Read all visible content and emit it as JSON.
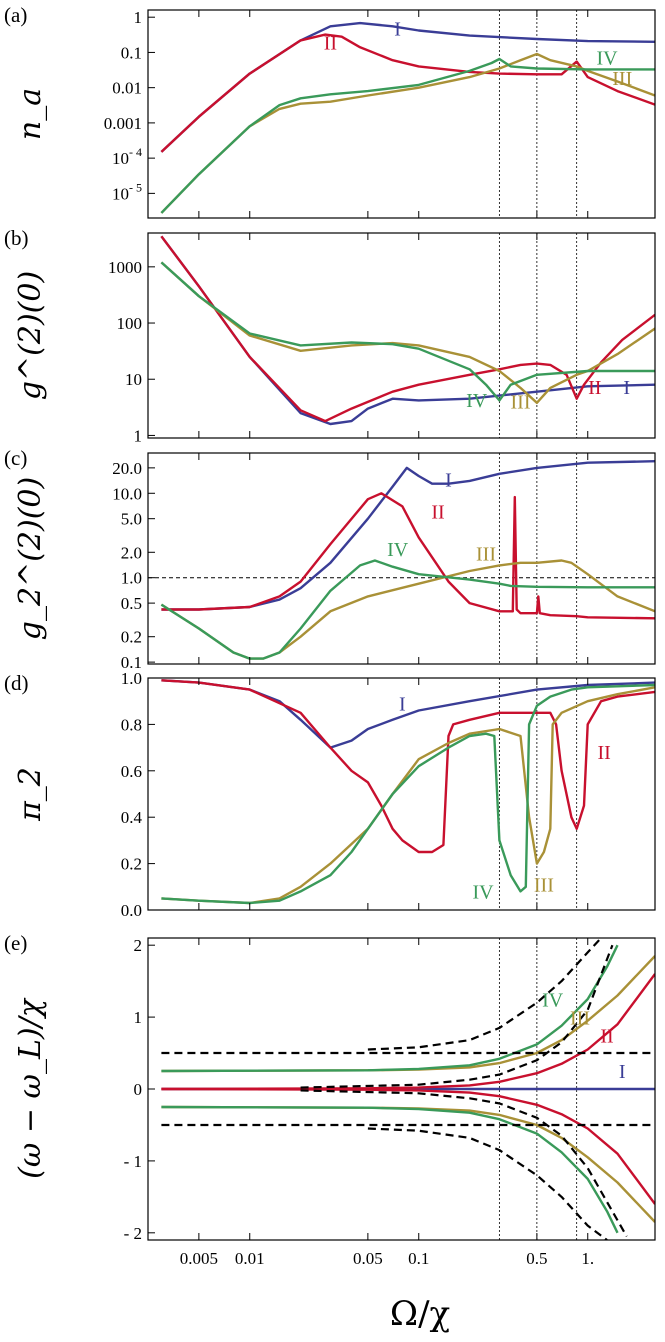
{
  "colors": {
    "I": "#3a3d96",
    "II": "#c8102e",
    "III": "#a99137",
    "IV": "#3a9a5a",
    "ref": "#000000"
  },
  "x_axis": {
    "label": "Ω/χ",
    "scale": "log",
    "range": [
      0.0025,
      2.5
    ],
    "ticks": [
      0.005,
      0.01,
      0.05,
      0.1,
      0.5,
      1.0
    ],
    "tick_labels": [
      "0.005",
      "0.01",
      "0.05",
      "0.1",
      "0.5",
      "1."
    ]
  },
  "reference_lines_x": [
    0.3,
    0.5,
    0.86
  ],
  "series_labels": [
    "I",
    "II",
    "III",
    "IV"
  ],
  "chart_data": [
    {
      "panel": "(a)",
      "type": "line",
      "ylabel": "n_a",
      "yscale": "log",
      "ylim": [
        2e-06,
        1.6
      ],
      "yticks": [
        1e-05,
        0.0001,
        0.001,
        0.01,
        0.1,
        1
      ],
      "ytick_labels": [
        "10^-5",
        "10^-4",
        "0.001",
        "0.01",
        "0.1",
        "1"
      ],
      "series": [
        {
          "name": "I",
          "x": [
            0.003,
            0.005,
            0.01,
            0.02,
            0.03,
            0.045,
            0.07,
            0.1,
            0.2,
            0.5,
            1.0,
            2.5
          ],
          "y": [
            0.00015,
            0.0015,
            0.025,
            0.22,
            0.55,
            0.68,
            0.55,
            0.42,
            0.3,
            0.24,
            0.21,
            0.2
          ]
        },
        {
          "name": "II",
          "x": [
            0.003,
            0.005,
            0.01,
            0.02,
            0.028,
            0.035,
            0.045,
            0.07,
            0.1,
            0.2,
            0.3,
            0.5,
            0.7,
            0.86,
            1.0,
            1.5,
            2.5
          ],
          "y": [
            0.00015,
            0.0015,
            0.025,
            0.22,
            0.32,
            0.28,
            0.14,
            0.06,
            0.04,
            0.028,
            0.025,
            0.024,
            0.024,
            0.055,
            0.02,
            0.008,
            0.0033
          ]
        },
        {
          "name": "III",
          "x": [
            0.003,
            0.005,
            0.01,
            0.015,
            0.02,
            0.03,
            0.05,
            0.1,
            0.2,
            0.3,
            0.4,
            0.5,
            0.6,
            0.86,
            1.0,
            1.5,
            2.5
          ],
          "y": [
            2.8e-06,
            3.5e-05,
            0.0008,
            0.0025,
            0.0035,
            0.004,
            0.006,
            0.01,
            0.02,
            0.035,
            0.06,
            0.09,
            0.06,
            0.04,
            0.03,
            0.015,
            0.006
          ]
        },
        {
          "name": "IV",
          "x": [
            0.003,
            0.005,
            0.01,
            0.015,
            0.02,
            0.03,
            0.05,
            0.1,
            0.2,
            0.27,
            0.3,
            0.35,
            0.5,
            1.0,
            2.5
          ],
          "y": [
            2.8e-06,
            3.5e-05,
            0.0008,
            0.0032,
            0.005,
            0.0065,
            0.008,
            0.012,
            0.03,
            0.05,
            0.065,
            0.04,
            0.035,
            0.033,
            0.033
          ]
        }
      ]
    },
    {
      "panel": "(b)",
      "type": "line",
      "ylabel": "g^(2)(0)",
      "yscale": "log",
      "ylim": [
        0.9,
        4000
      ],
      "yticks": [
        1,
        10,
        100,
        1000
      ],
      "ytick_labels": [
        "1",
        "10",
        "100",
        "1000"
      ],
      "series": [
        {
          "name": "I",
          "x": [
            0.003,
            0.005,
            0.01,
            0.02,
            0.03,
            0.04,
            0.05,
            0.07,
            0.1,
            0.2,
            0.5,
            1.0,
            2.5
          ],
          "y": [
            3500,
            450,
            25,
            2.5,
            1.6,
            1.8,
            3.0,
            4.5,
            4.2,
            4.5,
            6.0,
            7.5,
            8.0
          ]
        },
        {
          "name": "II",
          "x": [
            0.003,
            0.005,
            0.01,
            0.02,
            0.028,
            0.04,
            0.07,
            0.1,
            0.2,
            0.3,
            0.4,
            0.5,
            0.6,
            0.75,
            0.86,
            0.95,
            1.2,
            1.6,
            2.5
          ],
          "y": [
            3500,
            450,
            25,
            2.8,
            1.8,
            3.0,
            6.0,
            8.0,
            12.0,
            15.0,
            18.0,
            19.0,
            18.0,
            12.0,
            4.5,
            8.0,
            20.0,
            50.0,
            140.0
          ]
        },
        {
          "name": "III",
          "x": [
            0.003,
            0.005,
            0.01,
            0.02,
            0.04,
            0.07,
            0.1,
            0.2,
            0.3,
            0.4,
            0.5,
            0.6,
            0.86,
            1.0,
            1.5,
            2.5
          ],
          "y": [
            1200,
            300,
            60,
            32,
            40,
            44,
            40,
            25,
            14,
            7.0,
            3.8,
            7.0,
            12.0,
            14.0,
            28.0,
            80.0
          ]
        },
        {
          "name": "IV",
          "x": [
            0.003,
            0.005,
            0.01,
            0.02,
            0.04,
            0.07,
            0.1,
            0.2,
            0.25,
            0.3,
            0.35,
            0.5,
            1.0,
            2.5
          ],
          "y": [
            1200,
            300,
            65,
            40,
            45,
            42,
            35,
            15,
            8.0,
            4.2,
            8.0,
            12.0,
            14.0,
            14.0
          ]
        }
      ]
    },
    {
      "panel": "(c)",
      "type": "line",
      "ylabel": "g_2^(2)(0)",
      "yscale": "log",
      "ylim": [
        0.095,
        30
      ],
      "yticks": [
        0.1,
        0.2,
        0.5,
        1.0,
        2.0,
        5.0,
        10.0,
        20.0
      ],
      "ytick_labels": [
        "0.1",
        "0.2",
        "0.5",
        "1.0",
        "2.0",
        "5.0",
        "10.0",
        "20.0"
      ],
      "reference_y": 1.0,
      "series": [
        {
          "name": "I",
          "x": [
            0.003,
            0.005,
            0.01,
            0.015,
            0.02,
            0.03,
            0.05,
            0.07,
            0.085,
            0.1,
            0.12,
            0.15,
            0.2,
            0.3,
            0.5,
            1.0,
            2.5
          ],
          "y": [
            0.42,
            0.42,
            0.45,
            0.55,
            0.75,
            1.5,
            5.0,
            12.0,
            20.0,
            16.0,
            13.0,
            13.0,
            14.0,
            17.0,
            20.0,
            23.0,
            24.0
          ]
        },
        {
          "name": "II",
          "x": [
            0.003,
            0.005,
            0.01,
            0.015,
            0.02,
            0.03,
            0.05,
            0.06,
            0.08,
            0.1,
            0.15,
            0.2,
            0.3,
            0.36,
            0.37,
            0.38,
            0.4,
            0.5,
            0.51,
            0.52,
            0.6,
            0.86,
            1.0,
            2.5
          ],
          "y": [
            0.42,
            0.42,
            0.45,
            0.6,
            0.9,
            2.5,
            8.5,
            10.0,
            7.0,
            3.0,
            0.9,
            0.5,
            0.4,
            0.4,
            9.0,
            0.42,
            0.38,
            0.38,
            0.6,
            0.38,
            0.36,
            0.35,
            0.34,
            0.33
          ]
        },
        {
          "name": "III",
          "x": [
            0.003,
            0.005,
            0.008,
            0.01,
            0.012,
            0.015,
            0.02,
            0.03,
            0.05,
            0.1,
            0.2,
            0.3,
            0.4,
            0.5,
            0.7,
            0.8,
            1.0,
            1.5,
            2.5
          ],
          "y": [
            0.48,
            0.25,
            0.13,
            0.11,
            0.11,
            0.13,
            0.2,
            0.4,
            0.6,
            0.85,
            1.2,
            1.4,
            1.5,
            1.5,
            1.6,
            1.5,
            1.1,
            0.6,
            0.4
          ]
        },
        {
          "name": "IV",
          "x": [
            0.003,
            0.005,
            0.008,
            0.01,
            0.012,
            0.015,
            0.02,
            0.03,
            0.045,
            0.055,
            0.07,
            0.1,
            0.2,
            0.3,
            0.35,
            0.5,
            1.0,
            2.5
          ],
          "y": [
            0.48,
            0.25,
            0.13,
            0.11,
            0.11,
            0.13,
            0.25,
            0.7,
            1.4,
            1.6,
            1.35,
            1.1,
            0.95,
            0.85,
            0.8,
            0.78,
            0.77,
            0.77
          ]
        }
      ]
    },
    {
      "panel": "(d)",
      "type": "line",
      "ylabel": "π_2",
      "yscale": "linear",
      "ylim": [
        0.0,
        1.0
      ],
      "yticks": [
        0.0,
        0.2,
        0.4,
        0.6,
        0.8,
        1.0
      ],
      "ytick_labels": [
        "0.0",
        "0.2",
        "0.4",
        "0.6",
        "0.8",
        "1.0"
      ],
      "series": [
        {
          "name": "I",
          "x": [
            0.003,
            0.005,
            0.01,
            0.015,
            0.02,
            0.03,
            0.04,
            0.05,
            0.07,
            0.1,
            0.2,
            0.5,
            1.0,
            2.5
          ],
          "y": [
            0.99,
            0.98,
            0.95,
            0.9,
            0.82,
            0.7,
            0.73,
            0.78,
            0.82,
            0.86,
            0.9,
            0.95,
            0.97,
            0.98
          ]
        },
        {
          "name": "II",
          "x": [
            0.003,
            0.005,
            0.01,
            0.02,
            0.03,
            0.04,
            0.05,
            0.06,
            0.07,
            0.08,
            0.1,
            0.12,
            0.14,
            0.15,
            0.16,
            0.2,
            0.3,
            0.4,
            0.5,
            0.6,
            0.65,
            0.7,
            0.8,
            0.86,
            0.95,
            1.0,
            1.2,
            1.5,
            2.5
          ],
          "y": [
            0.99,
            0.98,
            0.95,
            0.85,
            0.7,
            0.6,
            0.55,
            0.45,
            0.35,
            0.3,
            0.25,
            0.25,
            0.28,
            0.75,
            0.8,
            0.82,
            0.85,
            0.85,
            0.85,
            0.85,
            0.8,
            0.6,
            0.4,
            0.35,
            0.45,
            0.8,
            0.9,
            0.92,
            0.94
          ]
        },
        {
          "name": "III",
          "x": [
            0.003,
            0.005,
            0.01,
            0.015,
            0.02,
            0.03,
            0.05,
            0.07,
            0.1,
            0.15,
            0.2,
            0.3,
            0.4,
            0.45,
            0.5,
            0.55,
            0.6,
            0.62,
            0.7,
            1.0,
            1.5,
            2.5
          ],
          "y": [
            0.05,
            0.04,
            0.03,
            0.05,
            0.1,
            0.2,
            0.35,
            0.5,
            0.65,
            0.72,
            0.76,
            0.78,
            0.75,
            0.4,
            0.2,
            0.25,
            0.35,
            0.8,
            0.85,
            0.9,
            0.93,
            0.96
          ]
        },
        {
          "name": "IV",
          "x": [
            0.003,
            0.005,
            0.01,
            0.015,
            0.02,
            0.03,
            0.04,
            0.05,
            0.07,
            0.1,
            0.15,
            0.2,
            0.25,
            0.28,
            0.3,
            0.35,
            0.4,
            0.43,
            0.45,
            0.5,
            0.6,
            0.8,
            1.0,
            2.5
          ],
          "y": [
            0.05,
            0.04,
            0.03,
            0.04,
            0.08,
            0.15,
            0.25,
            0.35,
            0.5,
            0.62,
            0.7,
            0.75,
            0.76,
            0.75,
            0.3,
            0.15,
            0.08,
            0.1,
            0.8,
            0.88,
            0.92,
            0.95,
            0.96,
            0.97
          ]
        }
      ]
    },
    {
      "panel": "(e)",
      "type": "line",
      "ylabel": "(ω − ω_L)/χ",
      "yscale": "linear",
      "ylim": [
        -2.1,
        2.1
      ],
      "yticks": [
        -2,
        -1,
        0,
        1,
        2
      ],
      "ytick_labels": [
        "- 2",
        "- 1",
        "0",
        "1",
        "2"
      ],
      "series": [
        {
          "name": "I",
          "x": [
            0.003,
            2.5
          ],
          "y": [
            0.0,
            0.0
          ]
        },
        {
          "name": "II",
          "x": [
            0.003,
            0.05,
            0.1,
            0.2,
            0.3,
            0.5,
            0.7,
            1.0,
            1.5,
            2.5
          ],
          "y": [
            0.0,
            0.01,
            0.02,
            0.05,
            0.1,
            0.22,
            0.35,
            0.55,
            0.9,
            1.6
          ]
        },
        {
          "name": "III",
          "x": [
            0.003,
            0.05,
            0.1,
            0.2,
            0.3,
            0.5,
            0.7,
            1.0,
            1.5,
            2.5
          ],
          "y": [
            0.25,
            0.26,
            0.27,
            0.3,
            0.36,
            0.5,
            0.68,
            0.95,
            1.3,
            1.85
          ]
        },
        {
          "name": "IV",
          "x": [
            0.003,
            0.05,
            0.1,
            0.2,
            0.3,
            0.5,
            0.7,
            1.0,
            1.3,
            1.5
          ],
          "y": [
            0.25,
            0.26,
            0.28,
            0.33,
            0.42,
            0.62,
            0.88,
            1.25,
            1.7,
            2.0
          ]
        },
        {
          "name": "II-lower",
          "x": [
            0.003,
            0.05,
            0.1,
            0.2,
            0.3,
            0.5,
            0.7,
            1.0,
            1.5,
            2.5
          ],
          "y": [
            0.0,
            -0.01,
            -0.02,
            -0.05,
            -0.1,
            -0.22,
            -0.35,
            -0.55,
            -0.9,
            -1.6
          ]
        },
        {
          "name": "III-lower",
          "x": [
            0.003,
            0.05,
            0.1,
            0.2,
            0.3,
            0.5,
            0.7,
            1.0,
            1.5,
            2.5
          ],
          "y": [
            -0.25,
            -0.26,
            -0.27,
            -0.3,
            -0.36,
            -0.5,
            -0.68,
            -0.95,
            -1.3,
            -1.85
          ]
        },
        {
          "name": "IV-lower",
          "x": [
            0.003,
            0.05,
            0.1,
            0.2,
            0.3,
            0.5,
            0.7,
            1.0,
            1.3,
            1.5
          ],
          "y": [
            -0.25,
            -0.26,
            -0.28,
            -0.33,
            -0.42,
            -0.62,
            -0.88,
            -1.25,
            -1.7,
            -2.0
          ]
        },
        {
          "name": "ref-upper-flat",
          "x": [
            0.003,
            2.5
          ],
          "y": [
            0.5,
            0.5
          ]
        },
        {
          "name": "ref-lower-flat",
          "x": [
            0.003,
            2.5
          ],
          "y": [
            -0.5,
            -0.5
          ]
        },
        {
          "name": "ref-upper-curve-1",
          "x": [
            0.02,
            0.1,
            0.2,
            0.3,
            0.5,
            0.7,
            1.0,
            1.4
          ],
          "y": [
            0.02,
            0.06,
            0.13,
            0.2,
            0.4,
            0.65,
            1.1,
            2.0
          ]
        },
        {
          "name": "ref-upper-curve-2",
          "x": [
            0.05,
            0.1,
            0.2,
            0.3,
            0.5,
            0.7,
            1.0,
            1.2
          ],
          "y": [
            0.55,
            0.58,
            0.68,
            0.85,
            1.2,
            1.5,
            1.9,
            2.1
          ]
        },
        {
          "name": "ref-lower-curve-1",
          "x": [
            0.02,
            0.1,
            0.2,
            0.3,
            0.5,
            0.7,
            1.0,
            1.7
          ],
          "y": [
            -0.02,
            -0.06,
            -0.13,
            -0.2,
            -0.4,
            -0.65,
            -1.1,
            -2.05
          ]
        },
        {
          "name": "ref-lower-curve-2",
          "x": [
            0.05,
            0.1,
            0.2,
            0.3,
            0.5,
            0.7,
            1.0,
            1.3
          ],
          "y": [
            -0.55,
            -0.58,
            -0.68,
            -0.85,
            -1.2,
            -1.5,
            -1.9,
            -2.1
          ]
        }
      ]
    }
  ]
}
